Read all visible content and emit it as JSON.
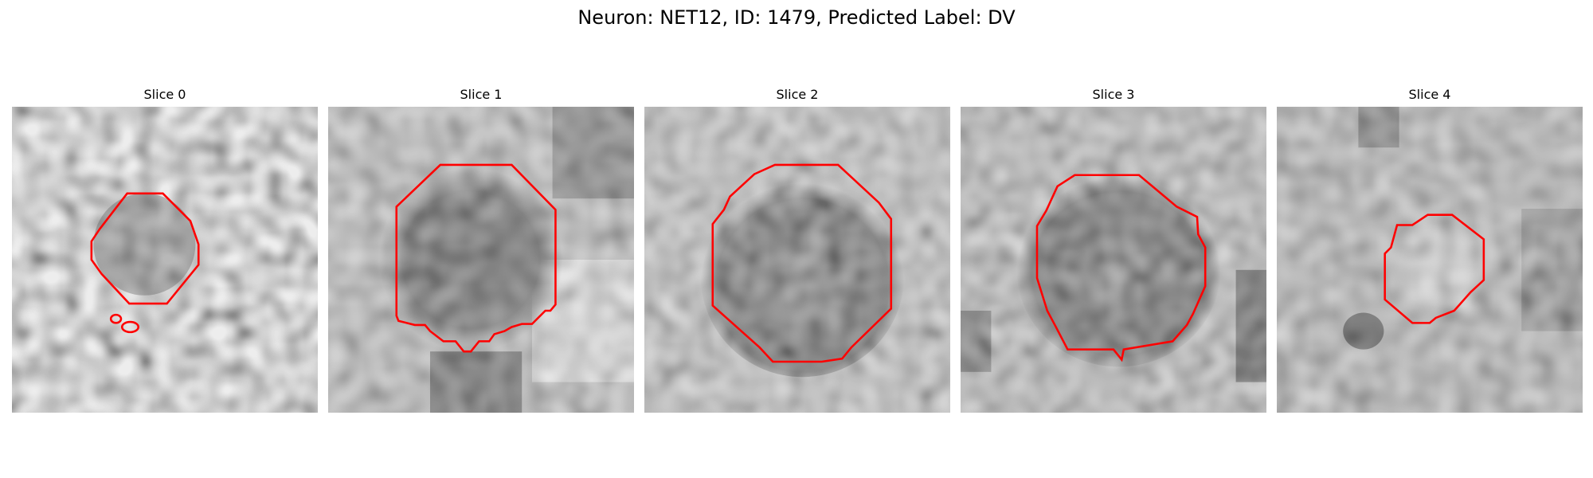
{
  "figure": {
    "title": "Neuron: NET12, ID: 1479, Predicted Label: DV"
  },
  "colors": {
    "contour": "#ff0000",
    "background": "#ffffff"
  },
  "panels": [
    {
      "title": "Slice 0"
    },
    {
      "title": "Slice 1"
    },
    {
      "title": "Slice 2"
    },
    {
      "title": "Slice 3"
    },
    {
      "title": "Slice 4"
    }
  ]
}
